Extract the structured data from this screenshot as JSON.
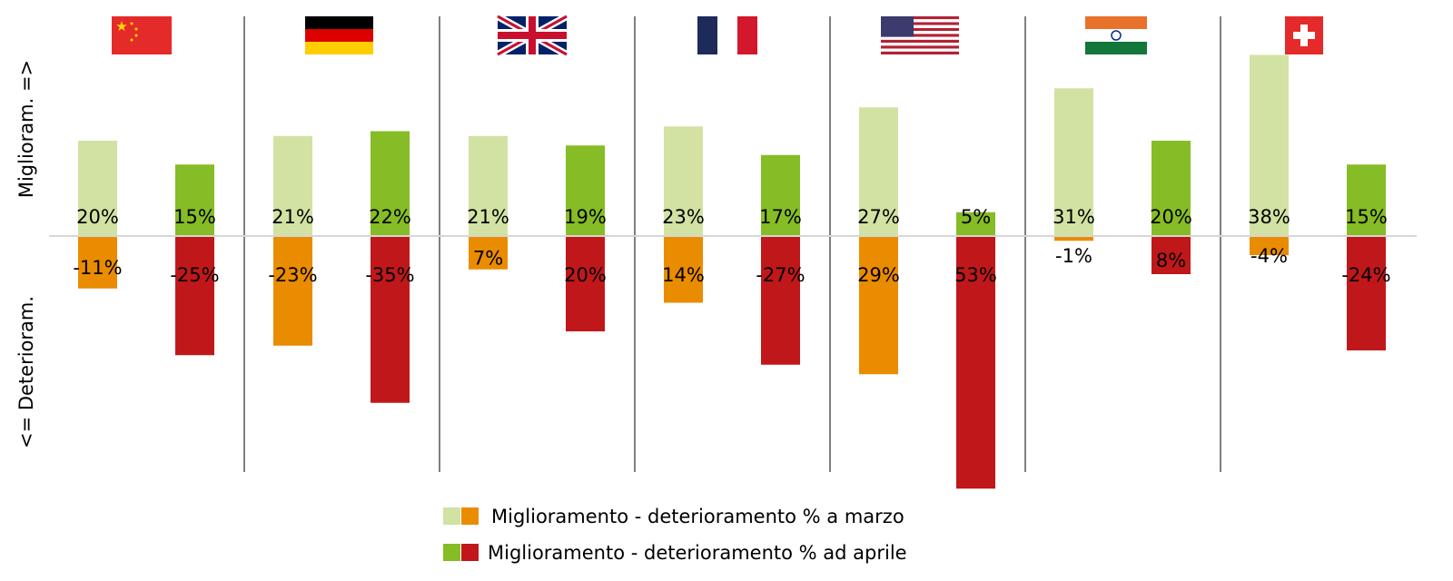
{
  "chart_data": {
    "type": "bar",
    "title": "",
    "ylabel_positive": "Miglioram. =>",
    "ylabel_negative": "<= Deterioram.",
    "categories": [
      "China",
      "Germany",
      "United Kingdom",
      "France",
      "USA",
      "India",
      "Switzerland"
    ],
    "flag_icons": [
      "china-flag-icon",
      "germany-flag-icon",
      "uk-flag-icon",
      "france-flag-icon",
      "usa-flag-icon",
      "india-flag-icon",
      "switzerland-flag-icon"
    ],
    "series": [
      {
        "name": "Miglioramento % a marzo",
        "color": "#d1e2a2",
        "values": [
          20,
          21,
          21,
          23,
          27,
          31,
          38
        ],
        "labels": [
          "20%",
          "21%",
          "21%",
          "23%",
          "27%",
          "31%",
          "38%"
        ]
      },
      {
        "name": "Deterioramento % a marzo",
        "color": "#ea8c00",
        "values": [
          -11,
          -23,
          -7,
          -14,
          -29,
          -1,
          -4
        ],
        "labels": [
          "-11%",
          "-23%",
          "7%",
          "14%",
          "29%",
          "-1%",
          "-4%"
        ]
      },
      {
        "name": "Miglioramento % ad aprile",
        "color": "#86bc25",
        "values": [
          15,
          22,
          19,
          17,
          5,
          20,
          15
        ],
        "labels": [
          "15%",
          "22%",
          "19%",
          "17%",
          "5%",
          "20%",
          "15%"
        ]
      },
      {
        "name": "Deterioramento % ad aprile",
        "color": "#c0181a",
        "values": [
          -25,
          -35,
          -20,
          -27,
          -53,
          -8,
          -24
        ],
        "labels": [
          "-25%",
          "-35%",
          "20%",
          "-27%",
          "53%",
          "8%",
          "-24%"
        ]
      }
    ],
    "legend": [
      {
        "label": "Miglioramento - deterioramento % a marzo",
        "colors": [
          "#d1e2a2",
          "#ea8c00"
        ]
      },
      {
        "label": "Miglioramento - deterioramento % ad aprile",
        "colors": [
          "#86bc25",
          "#c0181a"
        ]
      }
    ],
    "legend_position": "bottom-center",
    "ylim": [
      -55,
      40
    ]
  }
}
